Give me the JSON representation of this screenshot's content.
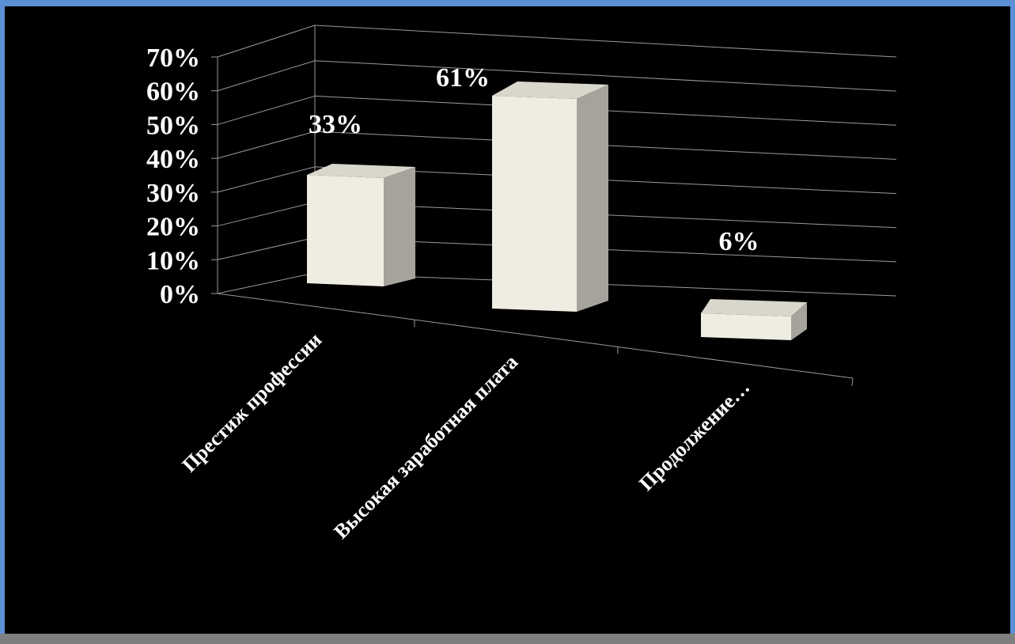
{
  "chart_data": {
    "type": "bar",
    "three_d": true,
    "categories": [
      "Престиж профессии",
      "Высокая заработная плата",
      "Продолжение…"
    ],
    "values": [
      33,
      61,
      6
    ],
    "value_labels": [
      "33%",
      "61%",
      "6%"
    ],
    "ylim": [
      0,
      70
    ],
    "yticks": [
      0,
      10,
      20,
      30,
      40,
      50,
      60,
      70
    ],
    "ytick_labels": [
      "0%",
      "10%",
      "20%",
      "30%",
      "40%",
      "50%",
      "60%",
      "70%"
    ],
    "title": "",
    "xlabel": "",
    "ylabel": "",
    "grid": true,
    "legend": "none",
    "colors": {
      "background": "#000000",
      "frame": "#5b8fd6",
      "bar_front": "#efede2",
      "bar_top": "#d9d7cc",
      "bar_side": "#a5a39b",
      "gridline": "#9a9a9a",
      "text": "#ffffff"
    }
  }
}
